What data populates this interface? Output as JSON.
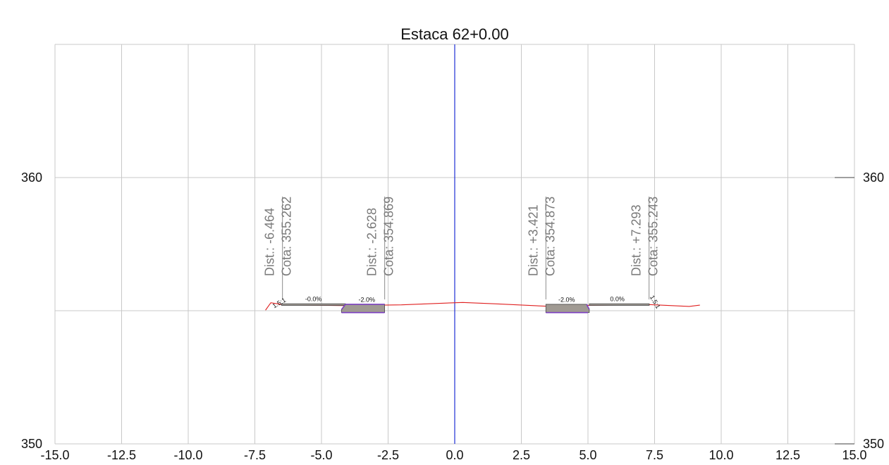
{
  "title": "Estaca 62+0.00",
  "axes": {
    "x_min": -15.0,
    "x_max": 15.0,
    "y_min": 350,
    "y_max": 365,
    "x_ticks": [
      -15.0,
      -12.5,
      -10.0,
      -7.5,
      -5.0,
      -2.5,
      0.0,
      2.5,
      5.0,
      7.5,
      10.0,
      12.5,
      15.0
    ],
    "x_tick_labels": [
      "-15.0",
      "-12.5",
      "-10.0",
      "-7.5",
      "-5.0",
      "-2.5",
      "0.0",
      "2.5",
      "5.0",
      "7.5",
      "10.0",
      "12.5",
      "15.0"
    ],
    "y_labels_left": [
      {
        "value": 360,
        "text": "360"
      },
      {
        "value": 350,
        "text": "350"
      }
    ],
    "y_labels_right": [
      {
        "value": 360,
        "text": "360"
      },
      {
        "value": 350,
        "text": "350"
      }
    ],
    "grid": true,
    "colors": {
      "grid": "#c8c8c8",
      "centerline": "#1f2fd6",
      "terrain": "#e02020",
      "pavement_fill": "#a09a93",
      "subgrade": "#7b3fc0"
    }
  },
  "chart_data": {
    "type": "cross-section",
    "title": "Estaca 62+0.00",
    "x_label": "",
    "y_label": "",
    "centerline_x": 0.0,
    "terrain_profile": [
      [
        -7.1,
        355.02
      ],
      [
        -6.9,
        355.3
      ],
      [
        -6.4,
        355.22
      ],
      [
        -4.0,
        355.19
      ],
      [
        -2.0,
        355.22
      ],
      [
        -1.0,
        355.26
      ],
      [
        0.3,
        355.31
      ],
      [
        1.5,
        355.26
      ],
      [
        3.4,
        355.17
      ],
      [
        5.0,
        355.2
      ],
      [
        7.3,
        355.23
      ],
      [
        8.8,
        355.16
      ],
      [
        9.2,
        355.21
      ]
    ],
    "pavement_sections": [
      {
        "id": "left-shoulder",
        "polygon": [
          [
            -6.5,
            355.26
          ],
          [
            -4.1,
            355.26
          ],
          [
            -4.1,
            355.2
          ],
          [
            -6.5,
            355.2
          ]
        ]
      },
      {
        "id": "left-lane",
        "polygon": [
          [
            -4.25,
            355.04
          ],
          [
            -4.1,
            355.24
          ],
          [
            -2.63,
            355.24
          ],
          [
            -2.63,
            354.93
          ],
          [
            -4.25,
            354.93
          ]
        ]
      },
      {
        "id": "right-lane",
        "polygon": [
          [
            3.42,
            355.24
          ],
          [
            4.95,
            355.24
          ],
          [
            5.05,
            355.05
          ],
          [
            5.05,
            354.93
          ],
          [
            3.42,
            354.93
          ]
        ]
      },
      {
        "id": "right-shoulder",
        "polygon": [
          [
            5.05,
            355.26
          ],
          [
            7.3,
            355.26
          ],
          [
            7.3,
            355.2
          ],
          [
            5.05,
            355.2
          ]
        ]
      }
    ],
    "subgrade_lines": [
      [
        [
          -4.25,
          355.04
        ],
        [
          -4.1,
          355.24
        ],
        [
          -2.63,
          355.24
        ]
      ],
      [
        [
          -4.25,
          354.93
        ],
        [
          -2.63,
          354.93
        ]
      ],
      [
        [
          3.42,
          354.93
        ],
        [
          5.0,
          354.93
        ]
      ],
      [
        [
          4.95,
          355.24
        ],
        [
          5.05,
          355.05
        ]
      ]
    ],
    "callouts": [
      {
        "x": -6.464,
        "dist": "Dist.: -6.464",
        "cota": "Cota: 355.262"
      },
      {
        "x": -2.628,
        "dist": "Dist.: -2.628",
        "cota": "Cota: 354.869"
      },
      {
        "x": 3.421,
        "dist": "Dist.: +3.421",
        "cota": "Cota: 354.873"
      },
      {
        "x": 7.293,
        "dist": "Dist.: +7.293",
        "cota": "Cota: 355.243"
      }
    ],
    "slope_labels": [
      {
        "x": -6.55,
        "y": 355.22,
        "text": "1.5:1",
        "rotate": -30
      },
      {
        "x": -5.3,
        "y": 355.36,
        "text": "-0.0%",
        "rotate": 0
      },
      {
        "x": -3.3,
        "y": 355.33,
        "text": "-2.0%",
        "rotate": 0
      },
      {
        "x": 4.2,
        "y": 355.33,
        "text": "-2.0%",
        "rotate": 0
      },
      {
        "x": 6.1,
        "y": 355.36,
        "text": "0.0%",
        "rotate": 0
      },
      {
        "x": 7.45,
        "y": 355.29,
        "text": "1.5:1",
        "rotate": 60
      }
    ]
  }
}
